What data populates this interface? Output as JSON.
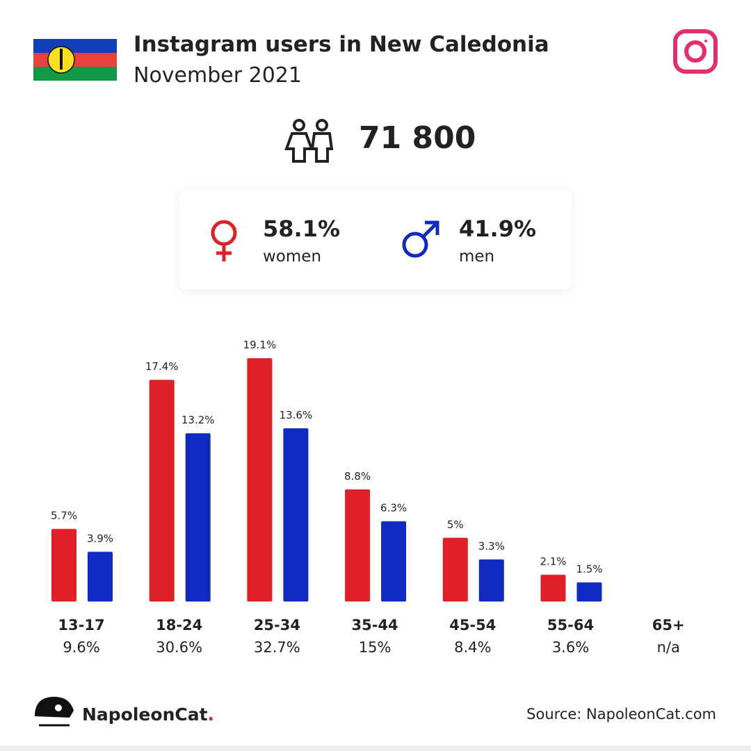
{
  "header": {
    "title": "Instagram users in New Caledonia",
    "subtitle": "November 2021"
  },
  "total": "71 800",
  "gender": [
    {
      "percent": "58.1%",
      "label": "women"
    },
    {
      "percent": "41.9%",
      "label": "men"
    }
  ],
  "chart_data": {
    "type": "bar",
    "categories": [
      "13-17",
      "18-24",
      "25-34",
      "35-44",
      "45-54",
      "55-64",
      "65+"
    ],
    "category_totals": [
      "9.6%",
      "30.6%",
      "32.7%",
      "15%",
      "8.4%",
      "3.6%",
      "n/a"
    ],
    "series": [
      {
        "name": "women",
        "color": "#df2027",
        "values": [
          5.7,
          17.4,
          19.1,
          8.8,
          5,
          2.1,
          null
        ],
        "value_labels": [
          "5.7%",
          "17.4%",
          "19.1%",
          "8.8%",
          "5%",
          "2.1%",
          null
        ]
      },
      {
        "name": "men",
        "color": "#1029c2",
        "values": [
          3.9,
          13.2,
          13.6,
          6.3,
          3.3,
          1.5,
          null
        ],
        "value_labels": [
          "3.9%",
          "13.2%",
          "13.6%",
          "6.3%",
          "3.3%",
          "1.5%",
          null
        ]
      }
    ]
  },
  "footer": {
    "brand": "NapoleonCat",
    "brand_dot": ".",
    "source": "Source: NapoleonCat.com"
  }
}
